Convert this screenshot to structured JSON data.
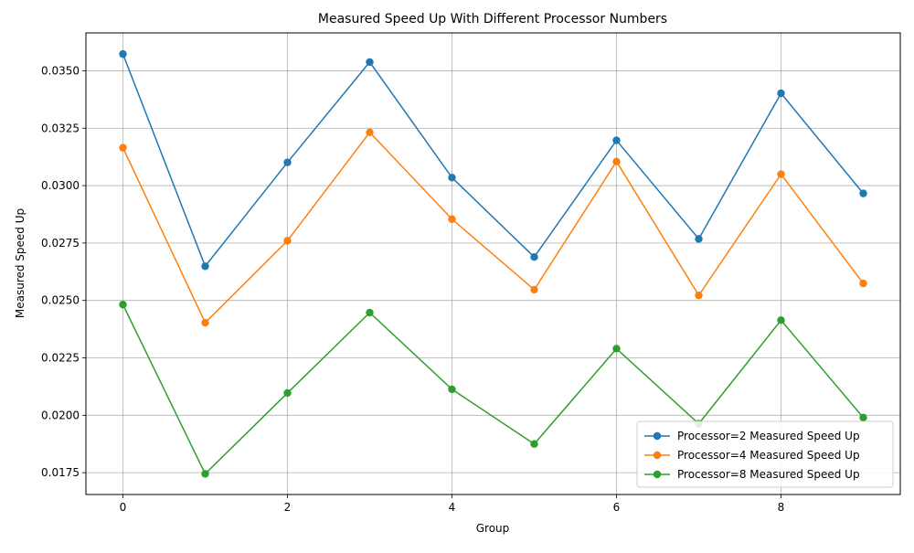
{
  "chart_data": {
    "type": "line",
    "title": "Measured Speed Up With Different Processor Numbers",
    "xlabel": "Group",
    "ylabel": "Measured Speed Up",
    "x": [
      0,
      1,
      2,
      3,
      4,
      5,
      6,
      7,
      8,
      9
    ],
    "xlim": [
      -0.45,
      9.45
    ],
    "ylim": [
      0.01655,
      0.03665
    ],
    "x_ticks": [
      0,
      2,
      4,
      6,
      8
    ],
    "x_tick_labels": [
      "0",
      "2",
      "4",
      "6",
      "8"
    ],
    "y_ticks": [
      0.0175,
      0.02,
      0.0225,
      0.025,
      0.0275,
      0.03,
      0.0325,
      0.035
    ],
    "y_tick_labels": [
      "0.0175",
      "0.0200",
      "0.0225",
      "0.0250",
      "0.0275",
      "0.0300",
      "0.0325",
      "0.0350"
    ],
    "grid": true,
    "legend_position": "lower-right",
    "marker": "circle",
    "series": [
      {
        "name": "Processor=2 Measured Speed Up",
        "color": "#1f77b4",
        "values": [
          0.03573,
          0.02649,
          0.03101,
          0.03538,
          0.03035,
          0.02689,
          0.03197,
          0.02768,
          0.03402,
          0.02966
        ]
      },
      {
        "name": "Processor=4 Measured Speed Up",
        "color": "#ff7f0e",
        "values": [
          0.03165,
          0.02403,
          0.0276,
          0.03232,
          0.02854,
          0.02547,
          0.03105,
          0.02522,
          0.0305,
          0.02574
        ]
      },
      {
        "name": "Processor=8 Measured Speed Up",
        "color": "#2ca02c",
        "values": [
          0.02482,
          0.01745,
          0.02097,
          0.02447,
          0.02113,
          0.01875,
          0.0229,
          0.01963,
          0.02414,
          0.0199
        ]
      }
    ]
  }
}
